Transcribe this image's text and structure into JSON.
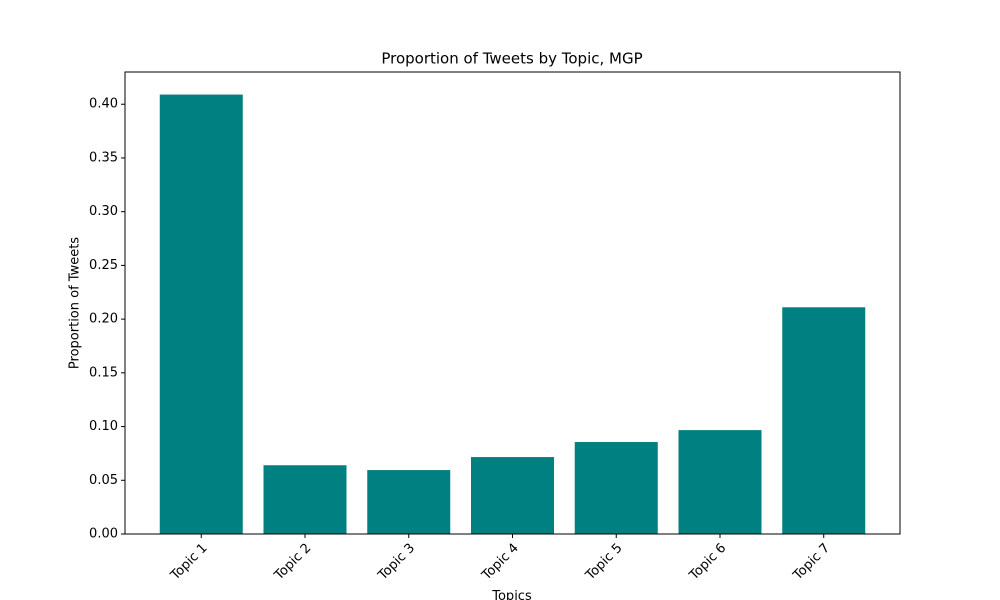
{
  "chart_data": {
    "type": "bar",
    "title": "Proportion of Tweets by Topic, MGP",
    "xlabel": "Topics",
    "ylabel": "Proportion of Tweets",
    "categories": [
      "Topic 1",
      "Topic 2",
      "Topic 3",
      "Topic 4",
      "Topic 5",
      "Topic 6",
      "Topic 7"
    ],
    "values": [
      0.409,
      0.064,
      0.0595,
      0.0716,
      0.0856,
      0.0967,
      0.211
    ],
    "color": "#008080",
    "ylim": [
      0,
      0.43
    ],
    "yticks": [
      {
        "value": 0,
        "label": "0.00"
      },
      {
        "value": 0.05,
        "label": "0.05"
      },
      {
        "value": 0.1,
        "label": "0.10"
      },
      {
        "value": 0.15,
        "label": "0.15"
      },
      {
        "value": 0.2,
        "label": "0.20"
      },
      {
        "value": 0.25,
        "label": "0.25"
      },
      {
        "value": 0.3,
        "label": "0.30"
      },
      {
        "value": 0.35,
        "label": "0.35"
      },
      {
        "value": 0.4,
        "label": "0.40"
      }
    ],
    "grid": false
  }
}
